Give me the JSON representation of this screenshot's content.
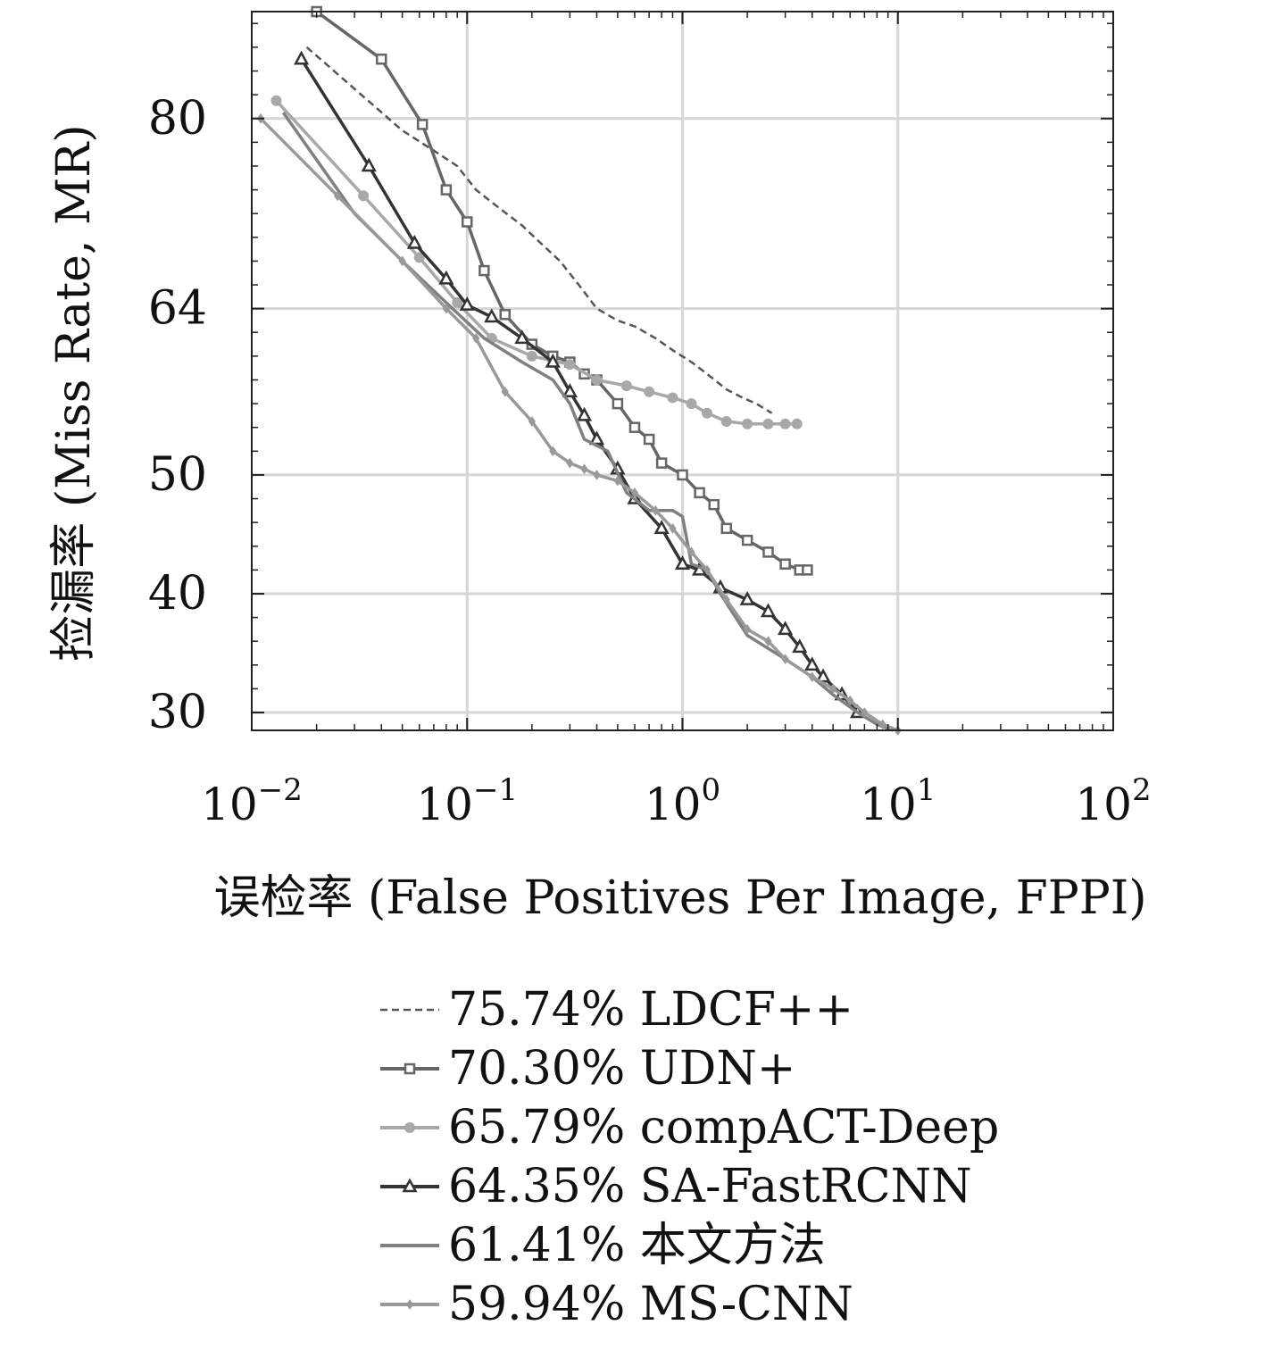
{
  "chart_data": {
    "type": "line",
    "xscale": "log",
    "xlim": [
      0.01,
      100
    ],
    "ylim": [
      28.5,
      89
    ],
    "xlabel": "误检率 (False Positives Per Image, FPPI)",
    "ylabel": "捡漏率 (Miss Rate, MR)",
    "x_ticks": [
      {
        "base": "10",
        "exp": "−2",
        "value": 0.01
      },
      {
        "base": "10",
        "exp": "−1",
        "value": 0.1
      },
      {
        "base": "10",
        "exp": "0",
        "value": 1
      },
      {
        "base": "10",
        "exp": "1",
        "value": 10
      },
      {
        "base": "10",
        "exp": "2",
        "value": 100
      }
    ],
    "y_tick_labels": [
      {
        "label": "80",
        "value": 80
      },
      {
        "label": "64",
        "value": 64
      },
      {
        "label": "50",
        "value": 50
      },
      {
        "label": "40",
        "value": 40
      },
      {
        "label": "30",
        "value": 30
      }
    ],
    "grid": true,
    "legend_position": "below",
    "series": [
      {
        "name": "75.74% LDCF++",
        "color": "#555555",
        "dash": "8,5",
        "marker": "none",
        "x": [
          0.018,
          0.03,
          0.05,
          0.07,
          0.09,
          0.11,
          0.14,
          0.18,
          0.22,
          0.27,
          0.33,
          0.4,
          0.5,
          0.6,
          0.75,
          0.9,
          1.1,
          1.3,
          1.6,
          1.9,
          2.2,
          2.6
        ],
        "y": [
          86,
          82.5,
          79,
          77.3,
          76,
          74,
          72.5,
          71,
          69.5,
          68,
          66,
          64,
          63,
          62.5,
          61.5,
          60.5,
          59.5,
          58.5,
          57.2,
          56.5,
          56,
          55.2
        ]
      },
      {
        "name": "70.30% UDN+",
        "color": "#666666",
        "dash": "",
        "marker": "square",
        "x": [
          0.02,
          0.04,
          0.062,
          0.08,
          0.1,
          0.12,
          0.15,
          0.2,
          0.25,
          0.3,
          0.35,
          0.4,
          0.5,
          0.6,
          0.7,
          0.8,
          1.0,
          1.2,
          1.4,
          1.6,
          2.0,
          2.5,
          3.0,
          3.5,
          3.8
        ],
        "y": [
          89,
          85,
          79.5,
          74,
          71.3,
          67.2,
          63.5,
          61,
          60,
          59.5,
          58.5,
          58,
          56,
          54,
          53,
          51,
          50,
          48.5,
          47.5,
          45.5,
          44.5,
          43.5,
          42.5,
          42,
          42
        ]
      },
      {
        "name": "65.79% compACT-Deep",
        "color": "#a8a8a8",
        "dash": "",
        "marker": "circle",
        "x": [
          0.013,
          0.033,
          0.06,
          0.09,
          0.13,
          0.2,
          0.3,
          0.4,
          0.55,
          0.7,
          0.9,
          1.1,
          1.3,
          1.6,
          2.0,
          2.5,
          3.0,
          3.4
        ],
        "y": [
          81.5,
          73.5,
          68.3,
          64.5,
          61.5,
          60,
          59.3,
          58,
          57.5,
          57,
          56.5,
          56,
          55.2,
          54.5,
          54.3,
          54.3,
          54.3,
          54.3
        ]
      },
      {
        "name": "64.35% SA-FastRCNN",
        "color": "#333333",
        "dash": "",
        "marker": "triangle",
        "x": [
          0.017,
          0.035,
          0.057,
          0.08,
          0.1,
          0.13,
          0.18,
          0.25,
          0.3,
          0.35,
          0.4,
          0.5,
          0.6,
          0.8,
          1.0,
          1.2,
          1.5,
          2.0,
          2.5,
          3.0,
          3.5,
          4.0,
          4.5,
          5.5,
          6.5
        ],
        "y": [
          85,
          76,
          69.5,
          66.5,
          64.3,
          63.3,
          61.5,
          59.5,
          57,
          55,
          53,
          50.5,
          48,
          45.5,
          42.5,
          42,
          40.5,
          39.5,
          38.5,
          37,
          35.5,
          34,
          33,
          31.5,
          30
        ]
      },
      {
        "name": "61.41% 本文方法",
        "color": "#808080",
        "dash": "",
        "marker": "none",
        "x": [
          0.014,
          0.03,
          0.05,
          0.08,
          0.12,
          0.18,
          0.25,
          0.3,
          0.35,
          0.45,
          0.55,
          0.7,
          0.8,
          0.9,
          1.0,
          1.1,
          1.3,
          1.5,
          2.0,
          3.0,
          4.0,
          5.0,
          6.5,
          8.0,
          9.5
        ],
        "y": [
          80.5,
          72,
          68,
          64.5,
          61.5,
          59.5,
          58,
          56,
          53,
          52,
          48.5,
          47,
          47,
          47,
          46.5,
          42.5,
          42,
          40,
          36.5,
          34.5,
          33,
          31.5,
          30,
          29,
          28.5
        ]
      },
      {
        "name": "59.94% MS-CNN",
        "color": "#999999",
        "dash": "",
        "marker": "diamond",
        "x": [
          0.011,
          0.025,
          0.05,
          0.08,
          0.11,
          0.15,
          0.2,
          0.25,
          0.3,
          0.35,
          0.4,
          0.5,
          0.6,
          0.75,
          0.9,
          1.1,
          1.3,
          1.6,
          2.0,
          2.5,
          3.0,
          4.0,
          5.0,
          6.0,
          7.0,
          8.5,
          10.0
        ],
        "y": [
          80,
          73.5,
          68,
          64,
          61.5,
          57,
          54.5,
          52,
          51,
          50.5,
          50,
          49.5,
          48.5,
          47,
          45.5,
          43.5,
          42,
          39.5,
          37,
          36,
          34.5,
          33,
          32,
          31,
          30,
          29,
          28.5
        ]
      }
    ]
  }
}
